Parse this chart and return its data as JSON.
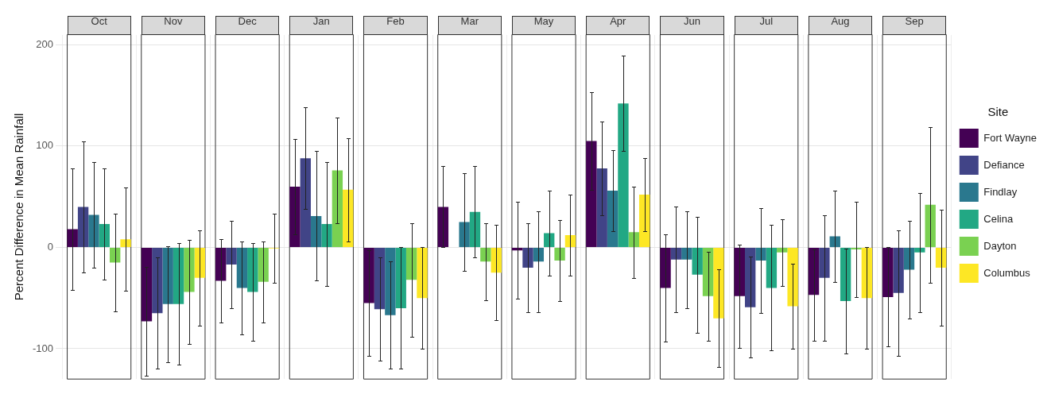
{
  "chart_data": {
    "type": "bar",
    "ylabel": "Percent Difference in Mean Rainfall",
    "legend_title": "Site",
    "legend": "right",
    "grid": true,
    "tick_labels": "y",
    "categories": [
      "Oct",
      "Nov",
      "Dec",
      "Jan",
      "Feb",
      "Mar",
      "May",
      "Apr",
      "Jun",
      "Jul",
      "Aug",
      "Sep"
    ],
    "ylim": [
      -130,
      210
    ],
    "yticks": [
      -100,
      0,
      100,
      200
    ],
    "series": [
      {
        "name": "Fort Wayne",
        "color": "#440154",
        "values": [
          18,
          -73,
          -33,
          60,
          -55,
          40,
          -3,
          105,
          -40,
          -48,
          -47,
          -49
        ],
        "errors": [
          60,
          54,
          41,
          47,
          52,
          40,
          48,
          48,
          53,
          51,
          45,
          49
        ]
      },
      {
        "name": "Defiance",
        "color": "#414487",
        "values": [
          40,
          -65,
          -17,
          88,
          -61,
          null,
          -20,
          78,
          -12,
          -59,
          -30,
          -45
        ],
        "errors": [
          65,
          55,
          43,
          50,
          51,
          null,
          44,
          46,
          52,
          50,
          62,
          62
        ]
      },
      {
        "name": "Findlay",
        "color": "#2a788e",
        "values": [
          32,
          -56,
          -40,
          31,
          -67,
          25,
          -14,
          56,
          -12,
          -13,
          11,
          -22
        ],
        "errors": [
          52,
          57,
          46,
          64,
          53,
          48,
          50,
          40,
          48,
          52,
          45,
          48
        ]
      },
      {
        "name": "Celina",
        "color": "#22a884",
        "values": [
          23,
          -56,
          -44,
          23,
          -60,
          35,
          14,
          142,
          -27,
          -40,
          -53,
          -5
        ],
        "errors": [
          55,
          60,
          48,
          61,
          60,
          45,
          42,
          47,
          57,
          62,
          52,
          59
        ]
      },
      {
        "name": "Dayton",
        "color": "#7ad151",
        "values": [
          -15,
          -44,
          -34,
          76,
          -32,
          -14,
          -13,
          15,
          -48,
          -5,
          -2,
          42
        ],
        "errors": [
          48,
          51,
          40,
          52,
          56,
          38,
          40,
          45,
          44,
          33,
          47,
          77
        ]
      },
      {
        "name": "Columbus",
        "color": "#fde725",
        "values": [
          8,
          -30,
          -1,
          57,
          -50,
          -25,
          12,
          52,
          -70,
          -58,
          -50,
          -20
        ],
        "errors": [
          51,
          47,
          34,
          51,
          50,
          47,
          40,
          36,
          48,
          42,
          50,
          57
        ]
      }
    ]
  }
}
